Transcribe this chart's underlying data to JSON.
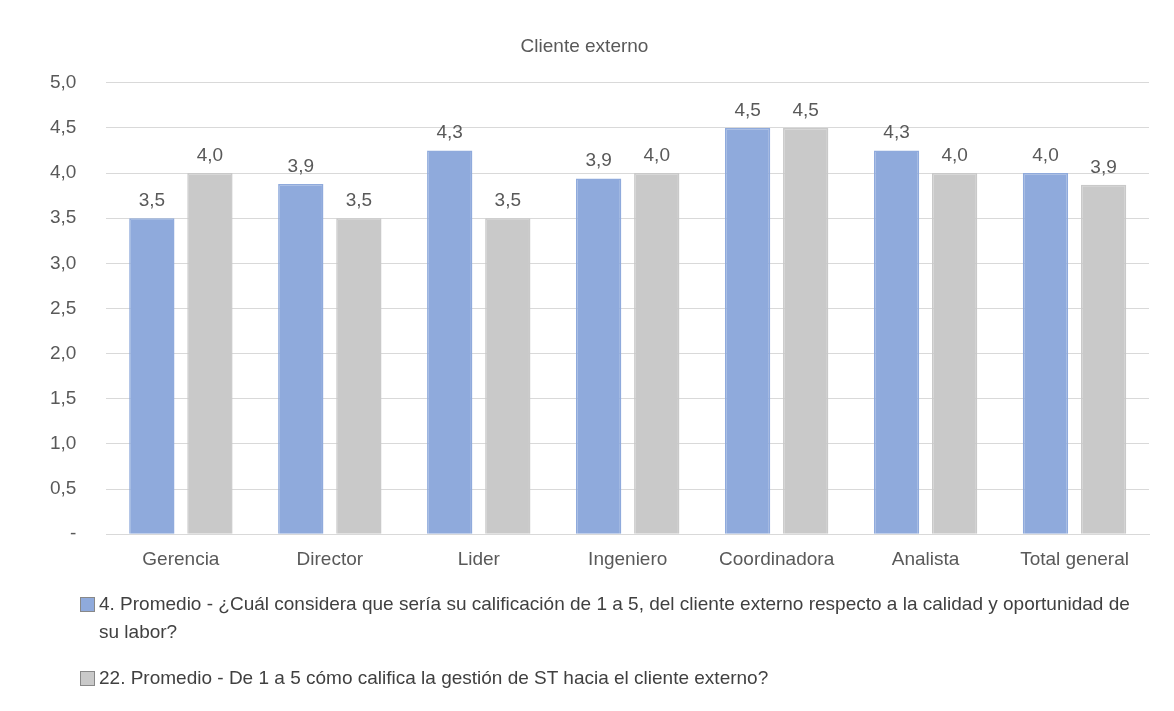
{
  "chart_data": {
    "type": "bar",
    "title": "Cliente externo",
    "categories": [
      "Gerencia",
      "Director",
      "Lider",
      "Ingeniero",
      "Coordinadora",
      "Analista",
      "Total general"
    ],
    "series": [
      {
        "name": "4. Promedio - ¿Cuál considera que sería su calificación de 1 a 5, del cliente externo respecto a la calidad y oportunidad de su labor?",
        "color": "#8faadc",
        "values": [
          3.5,
          3.88,
          4.25,
          3.94,
          4.5,
          4.25,
          4.0
        ],
        "value_labels": [
          "3,5",
          "3,9",
          "4,3",
          "3,9",
          "4,5",
          "4,3",
          "4,0"
        ]
      },
      {
        "name": "22. Promedio - De 1 a 5 cómo califica la gestión de ST hacia el cliente externo?",
        "color": "#c9c9c9",
        "values": [
          4.0,
          3.5,
          3.5,
          4.0,
          4.5,
          4.0,
          3.87
        ],
        "value_labels": [
          "4,0",
          "3,5",
          "3,5",
          "4,0",
          "4,5",
          "4,0",
          "3,9"
        ]
      }
    ],
    "ylim": [
      0,
      5
    ],
    "yticks": [
      {
        "value": 0,
        "label": "-"
      },
      {
        "value": 0.5,
        "label": "0,5"
      },
      {
        "value": 1,
        "label": "1,0"
      },
      {
        "value": 1.5,
        "label": "1,5"
      },
      {
        "value": 2,
        "label": "2,0"
      },
      {
        "value": 2.5,
        "label": "2,5"
      },
      {
        "value": 3,
        "label": "3,0"
      },
      {
        "value": 3.5,
        "label": "3,5"
      },
      {
        "value": 4,
        "label": "4,0"
      },
      {
        "value": 4.5,
        "label": "4,5"
      },
      {
        "value": 5,
        "label": "5,0"
      }
    ],
    "grid": "y",
    "legend": "bottom"
  }
}
